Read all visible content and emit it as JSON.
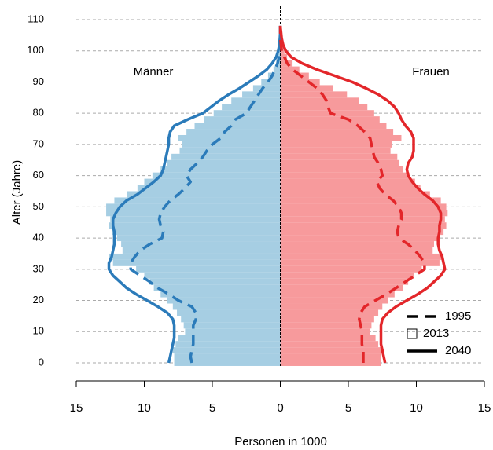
{
  "chart_data": {
    "type": "population-pyramid",
    "y_label": "Alter (Jahre)",
    "x_label": "Personen in 1000",
    "ages": [
      0,
      2,
      4,
      6,
      8,
      10,
      12,
      14,
      16,
      18,
      20,
      22,
      24,
      26,
      28,
      30,
      32,
      34,
      36,
      38,
      40,
      42,
      44,
      46,
      48,
      50,
      52,
      54,
      56,
      58,
      60,
      62,
      64,
      66,
      68,
      70,
      72,
      74,
      76,
      78,
      80,
      82,
      84,
      86,
      88,
      90,
      92,
      94,
      96,
      98,
      100,
      102,
      104,
      106,
      108
    ],
    "xlim": [
      -15,
      15
    ],
    "xticks": [
      {
        "value": -15,
        "label": "15"
      },
      {
        "value": -10,
        "label": "10"
      },
      {
        "value": -5,
        "label": "5"
      },
      0,
      5,
      10,
      15
    ],
    "ylim": [
      0,
      110
    ],
    "yticks": [
      0,
      10,
      20,
      30,
      40,
      50,
      60,
      70,
      80,
      90,
      100,
      110
    ],
    "grid": true,
    "legend_position": "bottom-right",
    "legend": [
      {
        "label": "1995",
        "style": "dashed"
      },
      {
        "label": "2013",
        "style": "bars"
      },
      {
        "label": "2040",
        "style": "solid"
      }
    ],
    "series": [
      {
        "name": "Männer",
        "side": "left",
        "bar_color": "#a6cee3",
        "line_color": "#2b7bba",
        "values": [
          [
            6.5,
            6.6,
            6.5,
            6.4,
            6.4,
            6.4,
            6.4,
            6.2,
            6.2,
            6.5,
            7.5,
            8.2,
            9.0,
            9.6,
            10.3,
            11.0,
            11.0,
            10.7,
            10.3,
            9.6,
            8.7,
            8.6,
            8.8,
            8.9,
            8.8,
            8.5,
            8.1,
            7.5,
            7.0,
            6.6,
            6.9,
            6.6,
            6.1,
            5.7,
            5.4,
            5.0,
            4.4,
            4.1,
            3.6,
            3.3,
            2.5,
            2.2,
            1.9,
            1.6,
            1.3,
            0.9,
            0.6,
            0.4,
            0.2,
            0.1,
            0.05,
            0,
            0,
            0,
            0
          ],
          [
            7.8,
            7.8,
            7.9,
            7.7,
            7.5,
            7.0,
            7.1,
            7.3,
            7.6,
            7.9,
            8.3,
            8.8,
            9.3,
            9.6,
            10.0,
            10.6,
            12.3,
            12.6,
            11.6,
            11.7,
            12.0,
            12.4,
            12.6,
            12.5,
            12.8,
            12.8,
            12.2,
            11.3,
            10.5,
            10.0,
            9.4,
            8.8,
            8.3,
            8.0,
            7.4,
            7.2,
            7.5,
            6.9,
            6.3,
            5.6,
            4.9,
            4.3,
            3.6,
            2.8,
            2.0,
            1.4,
            0.9,
            0.5,
            0.3,
            0.2,
            0.1,
            0.05,
            0.02,
            0,
            0
          ],
          [
            8.2,
            8.1,
            8.0,
            7.9,
            7.8,
            7.8,
            7.8,
            7.9,
            8.3,
            9.0,
            9.8,
            10.6,
            11.3,
            11.8,
            12.3,
            12.6,
            12.6,
            12.4,
            12.3,
            12.2,
            12.2,
            12.2,
            12.3,
            12.3,
            12.1,
            11.8,
            11.3,
            10.5,
            9.9,
            9.3,
            8.8,
            8.6,
            8.5,
            8.4,
            8.3,
            8.2,
            8.2,
            8.1,
            7.8,
            6.8,
            5.7,
            5.1,
            4.5,
            3.8,
            3.0,
            2.3,
            1.6,
            1.0,
            0.6,
            0.3,
            0.15,
            0.07,
            0.03,
            0,
            0
          ]
        ]
      },
      {
        "name": "Frauen",
        "side": "right",
        "bar_color": "#f79a9c",
        "line_color": "#e3262a",
        "values": [
          [
            6.1,
            6.1,
            6.1,
            6.0,
            6.0,
            6.0,
            5.9,
            5.8,
            5.9,
            6.2,
            7.0,
            7.8,
            8.5,
            9.2,
            9.9,
            10.6,
            10.6,
            10.3,
            9.9,
            9.4,
            8.7,
            8.6,
            8.7,
            8.9,
            8.9,
            8.7,
            8.3,
            7.7,
            7.3,
            7.1,
            7.5,
            7.4,
            7.2,
            6.9,
            6.8,
            6.7,
            6.6,
            6.2,
            5.7,
            5.0,
            3.7,
            3.5,
            3.4,
            3.1,
            2.7,
            2.1,
            1.5,
            0.9,
            0.5,
            0.3,
            0.1,
            0.05,
            0,
            0,
            0
          ],
          [
            7.4,
            7.4,
            7.4,
            7.2,
            7.0,
            6.6,
            6.7,
            6.9,
            7.2,
            7.5,
            7.9,
            8.4,
            9.0,
            9.4,
            9.8,
            10.4,
            11.7,
            12.0,
            11.2,
            11.3,
            11.6,
            12.0,
            12.2,
            12.1,
            12.3,
            12.2,
            11.8,
            11.0,
            10.3,
            9.9,
            9.5,
            9.0,
            8.7,
            8.6,
            8.1,
            8.2,
            8.9,
            8.3,
            7.8,
            7.3,
            6.9,
            6.4,
            5.8,
            4.9,
            3.9,
            2.9,
            2.1,
            1.4,
            0.9,
            0.5,
            0.3,
            0.15,
            0.05,
            0,
            0
          ],
          [
            7.7,
            7.6,
            7.5,
            7.4,
            7.4,
            7.4,
            7.4,
            7.5,
            7.9,
            8.5,
            9.3,
            10.1,
            10.8,
            11.3,
            11.8,
            12.1,
            12.0,
            11.9,
            11.7,
            11.6,
            11.6,
            11.7,
            11.7,
            11.8,
            11.8,
            11.6,
            11.2,
            10.6,
            10.1,
            9.7,
            9.4,
            9.3,
            9.4,
            9.7,
            9.8,
            9.8,
            9.8,
            9.6,
            9.2,
            8.9,
            8.7,
            8.4,
            7.9,
            7.2,
            6.3,
            5.3,
            4.0,
            2.7,
            1.6,
            0.8,
            0.4,
            0.2,
            0.1,
            0.05,
            0
          ]
        ]
      }
    ]
  }
}
